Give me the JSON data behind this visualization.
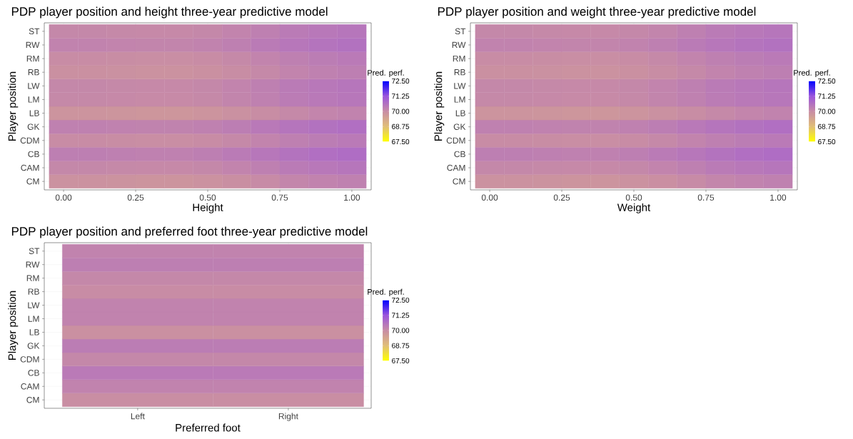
{
  "chart_data": [
    {
      "type": "heatmap",
      "title": "PDP player position and height three-year predictive model",
      "xlabel": "Height",
      "ylabel": "Player position",
      "clabel": "Pred. perf.",
      "x": [
        0,
        0.1,
        0.2,
        0.3,
        0.4,
        0.5,
        0.6,
        0.7,
        0.8,
        0.9,
        1
      ],
      "xlim": [
        -0.067,
        1.067
      ],
      "xticks": [
        {
          "value": 0,
          "label": "0.00"
        },
        {
          "value": 0.25,
          "label": "0.25"
        },
        {
          "value": 0.5,
          "label": "0.50"
        },
        {
          "value": 0.75,
          "label": "0.75"
        },
        {
          "value": 1,
          "label": "1.00"
        }
      ],
      "y_categories": [
        "ST",
        "RW",
        "RM",
        "RB",
        "LW",
        "LM",
        "LB",
        "GK",
        "CDM",
        "CB",
        "CAM",
        "CM"
      ],
      "cells": [
        [
          70.1,
          70.1,
          70.08,
          70.06,
          70.06,
          70.1,
          70.18,
          70.28,
          70.38,
          70.45,
          70.5
        ],
        [
          70.2,
          70.2,
          70.18,
          70.16,
          70.16,
          70.2,
          70.28,
          70.38,
          70.48,
          70.55,
          70.6
        ],
        [
          70.0,
          70.0,
          69.98,
          69.96,
          69.96,
          70.0,
          70.08,
          70.18,
          70.28,
          70.35,
          70.4
        ],
        [
          69.9,
          69.9,
          69.88,
          69.86,
          69.86,
          69.9,
          69.98,
          70.08,
          70.18,
          70.25,
          70.3
        ],
        [
          70.1,
          70.1,
          70.08,
          70.06,
          70.06,
          70.1,
          70.18,
          70.28,
          70.38,
          70.45,
          70.5
        ],
        [
          70.08,
          70.08,
          70.06,
          70.04,
          70.04,
          70.08,
          70.16,
          70.26,
          70.36,
          70.43,
          70.48
        ],
        [
          69.8,
          69.8,
          69.78,
          69.76,
          69.76,
          69.8,
          69.88,
          69.98,
          70.08,
          70.15,
          70.2
        ],
        [
          70.25,
          70.25,
          70.23,
          70.21,
          70.21,
          70.25,
          70.33,
          70.43,
          70.53,
          70.6,
          70.65
        ],
        [
          70.0,
          70.0,
          69.98,
          69.96,
          69.96,
          70.0,
          70.08,
          70.18,
          70.28,
          70.35,
          70.4
        ],
        [
          70.3,
          70.3,
          70.28,
          70.26,
          70.26,
          70.3,
          70.38,
          70.48,
          70.58,
          70.65,
          70.7
        ],
        [
          70.1,
          70.1,
          70.08,
          70.06,
          70.06,
          70.1,
          70.18,
          70.28,
          70.38,
          70.45,
          70.5
        ],
        [
          69.85,
          69.85,
          69.83,
          69.81,
          69.81,
          69.85,
          69.93,
          70.03,
          70.13,
          70.2,
          70.25
        ]
      ],
      "clim": [
        67.5,
        72.5
      ],
      "cticks": [
        {
          "value": 67.5,
          "label": "67.50"
        },
        {
          "value": 68.75,
          "label": "68.75"
        },
        {
          "value": 70,
          "label": "70.00"
        },
        {
          "value": 71.25,
          "label": "71.25"
        },
        {
          "value": 72.5,
          "label": "72.50"
        }
      ],
      "grid": true
    },
    {
      "type": "heatmap",
      "title": "PDP player position and weight three-year predictive model",
      "xlabel": "Weight",
      "ylabel": "Player position",
      "clabel": "Pred. perf.",
      "x": [
        0,
        0.1,
        0.2,
        0.3,
        0.4,
        0.5,
        0.6,
        0.7,
        0.8,
        0.9,
        1
      ],
      "xlim": [
        -0.067,
        1.067
      ],
      "xticks": [
        {
          "value": 0,
          "label": "0.00"
        },
        {
          "value": 0.25,
          "label": "0.25"
        },
        {
          "value": 0.5,
          "label": "0.50"
        },
        {
          "value": 0.75,
          "label": "0.75"
        },
        {
          "value": 1,
          "label": "1.00"
        }
      ],
      "y_categories": [
        "ST",
        "RW",
        "RM",
        "RB",
        "LW",
        "LM",
        "LB",
        "GK",
        "CDM",
        "CB",
        "CAM",
        "CM"
      ],
      "cells": [
        [
          70.1,
          70.1,
          70.08,
          70.06,
          70.06,
          70.1,
          70.17,
          70.27,
          70.38,
          70.45,
          70.5
        ],
        [
          70.2,
          70.2,
          70.18,
          70.16,
          70.16,
          70.2,
          70.28,
          70.38,
          70.48,
          70.55,
          70.6
        ],
        [
          70.0,
          70.0,
          69.98,
          69.96,
          69.96,
          70.0,
          70.08,
          70.18,
          70.28,
          70.35,
          70.4
        ],
        [
          69.9,
          69.9,
          69.88,
          69.86,
          69.86,
          69.9,
          69.98,
          70.08,
          70.18,
          70.25,
          70.3
        ],
        [
          70.1,
          70.1,
          70.08,
          70.06,
          70.06,
          70.1,
          70.18,
          70.28,
          70.38,
          70.45,
          70.5
        ],
        [
          70.08,
          70.08,
          70.06,
          70.04,
          70.04,
          70.08,
          70.16,
          70.26,
          70.36,
          70.43,
          70.48
        ],
        [
          69.8,
          69.8,
          69.78,
          69.76,
          69.76,
          69.8,
          69.88,
          69.98,
          70.08,
          70.15,
          70.2
        ],
        [
          70.25,
          70.25,
          70.23,
          70.21,
          70.21,
          70.25,
          70.33,
          70.43,
          70.53,
          70.6,
          70.65
        ],
        [
          70.0,
          70.0,
          69.98,
          69.96,
          69.96,
          70.0,
          70.08,
          70.18,
          70.28,
          70.35,
          70.4
        ],
        [
          70.3,
          70.3,
          70.28,
          70.26,
          70.26,
          70.3,
          70.38,
          70.48,
          70.58,
          70.65,
          70.7
        ],
        [
          70.1,
          70.1,
          70.08,
          70.06,
          70.06,
          70.1,
          70.18,
          70.28,
          70.38,
          70.45,
          70.5
        ],
        [
          69.85,
          69.85,
          69.83,
          69.81,
          69.81,
          69.85,
          69.92,
          70.02,
          70.13,
          70.2,
          70.25
        ]
      ],
      "clim": [
        67.5,
        72.5
      ],
      "cticks": [
        {
          "value": 67.5,
          "label": "67.50"
        },
        {
          "value": 68.75,
          "label": "68.75"
        },
        {
          "value": 70,
          "label": "70.00"
        },
        {
          "value": 71.25,
          "label": "71.25"
        },
        {
          "value": 72.5,
          "label": "72.50"
        }
      ],
      "grid": true
    },
    {
      "type": "heatmap",
      "title": "PDP player position and preferred foot three-year predictive model",
      "xlabel": "Preferred foot",
      "ylabel": "Player position",
      "clabel": "Pred. perf.",
      "categories": [
        "Left",
        "Right"
      ],
      "y_categories": [
        "ST",
        "RW",
        "RM",
        "RB",
        "LW",
        "LM",
        "LB",
        "GK",
        "CDM",
        "CB",
        "CAM",
        "CM"
      ],
      "cells": [
        [
          70.2,
          70.2
        ],
        [
          70.3,
          70.3
        ],
        [
          70.1,
          70.1
        ],
        [
          70.0,
          70.0
        ],
        [
          70.2,
          70.2
        ],
        [
          70.2,
          70.2
        ],
        [
          69.9,
          69.9
        ],
        [
          70.35,
          70.35
        ],
        [
          70.1,
          70.1
        ],
        [
          70.4,
          70.4
        ],
        [
          70.2,
          70.2
        ],
        [
          69.95,
          69.95
        ]
      ],
      "clim": [
        67.5,
        72.5
      ],
      "cticks": [
        {
          "value": 67.5,
          "label": "67.50"
        },
        {
          "value": 68.75,
          "label": "68.75"
        },
        {
          "value": 70,
          "label": "70.00"
        },
        {
          "value": 71.25,
          "label": "71.25"
        },
        {
          "value": 72.5,
          "label": "72.50"
        }
      ],
      "grid": true
    }
  ]
}
